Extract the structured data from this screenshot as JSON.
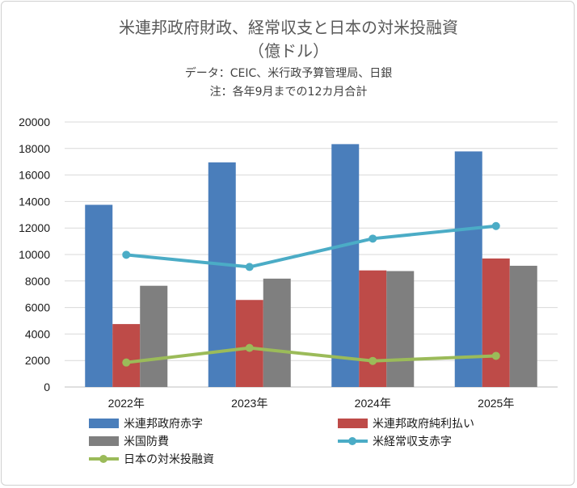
{
  "chart_data": {
    "type": "bar+line",
    "title": "米連邦政府財政、経常収支と日本の対米投融資",
    "unit": "（億ドル）",
    "source": "データ：CEIC、米行政予算管理局、日銀",
    "note": "注：各年9月までの12カ月合計",
    "categories": [
      "2022年",
      "2023年",
      "2024年",
      "2025年"
    ],
    "ylim": [
      0,
      20000
    ],
    "yticks": [
      0,
      2000,
      4000,
      6000,
      8000,
      10000,
      12000,
      14000,
      16000,
      18000,
      20000
    ],
    "grid": true,
    "series": [
      {
        "name": "米連邦政府赤字",
        "kind": "bar",
        "color": "#4a7ebb",
        "values": [
          13750,
          16950,
          18330,
          17780
        ]
      },
      {
        "name": "米連邦政府純利払い",
        "kind": "bar",
        "color": "#be4b48",
        "values": [
          4750,
          6570,
          8800,
          9700
        ]
      },
      {
        "name": "米国防費",
        "kind": "bar",
        "color": "#7f7f7f",
        "values": [
          7640,
          8180,
          8750,
          9150
        ]
      },
      {
        "name": "米経常収支赤字",
        "kind": "line",
        "color": "#4bacc6",
        "values": [
          9980,
          9060,
          11200,
          12150
        ]
      },
      {
        "name": "日本の対米投融資",
        "kind": "line",
        "color": "#9bbb59",
        "values": [
          1850,
          2950,
          1970,
          2350
        ]
      }
    ]
  }
}
